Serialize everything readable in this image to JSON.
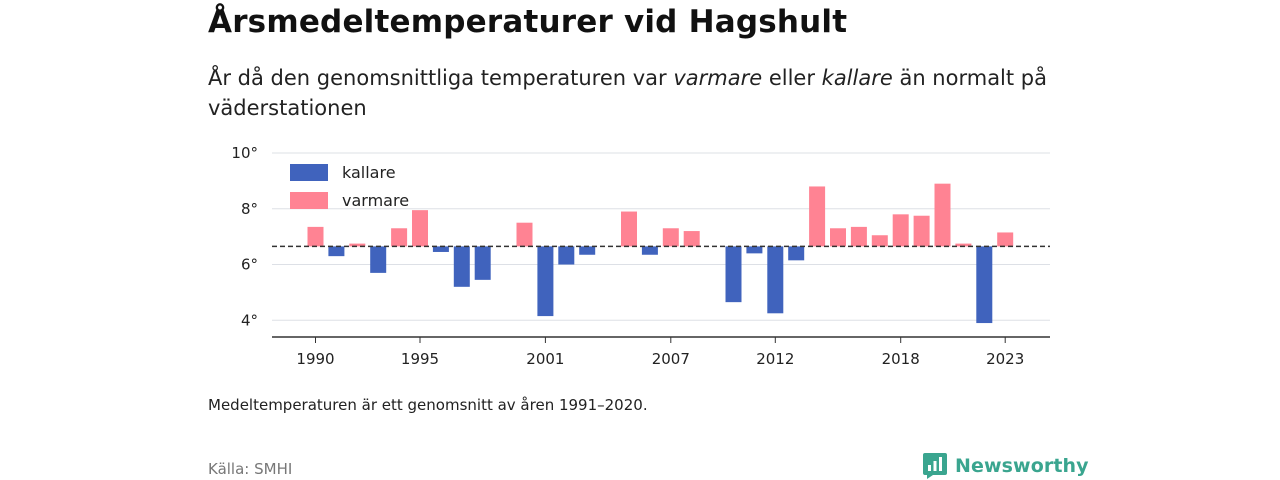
{
  "title": "Årsmedeltemperaturer vid Hagshult",
  "subtitle": {
    "part1": "År då den genomsnittliga temperaturen var ",
    "warm_word": "varmare",
    "part2": " eller ",
    "cold_word": "kallare",
    "part3": " än normalt på väderstationen"
  },
  "note": "Medeltemperaturen är ett genomsnitt av åren 1991–2020.",
  "source": "Källa: SMHI",
  "brand": {
    "name": "Newsworthy",
    "icon": "newsworthy-logo-icon"
  },
  "colors": {
    "cold": "#4063bd",
    "warm": "#ff8393",
    "grid": "#dde0e6",
    "baseline": "#333333",
    "axis": "#333333"
  },
  "chart_data": {
    "type": "bar",
    "baseline_value": 6.65,
    "ylim": [
      3.4,
      10
    ],
    "yticks": [
      4,
      6,
      8,
      10
    ],
    "ytick_labels": [
      "4°",
      "6°",
      "8°",
      "10°"
    ],
    "xticks": [
      1990,
      1995,
      2001,
      2007,
      2012,
      2018,
      2023
    ],
    "xtick_labels": [
      "1990",
      "1995",
      "2001",
      "2007",
      "2012",
      "2018",
      "2023"
    ],
    "legend": {
      "position": "top-left",
      "items": [
        {
          "label": "kallare",
          "key": "cold"
        },
        {
          "label": "varmare",
          "key": "warm"
        }
      ]
    },
    "grid": true,
    "years": [
      1990,
      1991,
      1992,
      1993,
      1994,
      1995,
      1996,
      1997,
      1998,
      1999,
      2000,
      2001,
      2002,
      2003,
      2004,
      2005,
      2006,
      2007,
      2008,
      2009,
      2010,
      2011,
      2012,
      2013,
      2014,
      2015,
      2016,
      2017,
      2018,
      2019,
      2020,
      2021,
      2022,
      2023
    ],
    "values": [
      7.35,
      6.3,
      6.75,
      5.7,
      7.3,
      7.95,
      6.45,
      5.2,
      5.45,
      null,
      7.5,
      4.15,
      6.0,
      6.35,
      null,
      7.9,
      6.35,
      7.3,
      7.2,
      null,
      4.65,
      6.4,
      4.25,
      6.15,
      8.8,
      7.3,
      7.35,
      7.05,
      7.8,
      7.75,
      8.9,
      6.75,
      3.9,
      7.15
    ]
  }
}
